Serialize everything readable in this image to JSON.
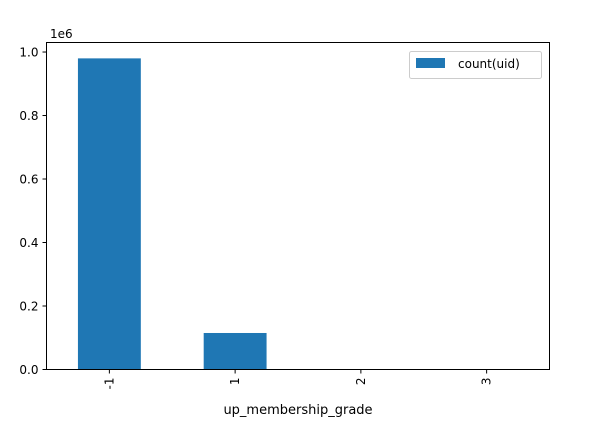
{
  "chart_data": {
    "type": "bar",
    "categories": [
      "-1",
      "1",
      "2",
      "3"
    ],
    "series": [
      {
        "name": "count(uid)",
        "values": [
          980000,
          115000,
          0,
          0
        ],
        "color": "#1f77b4"
      }
    ],
    "xlabel": "up_membership_grade",
    "ylabel": "",
    "ylim": [
      0,
      1030000
    ],
    "yticks": [
      0,
      200000,
      400000,
      600000,
      800000,
      1000000
    ],
    "ytick_labels": [
      "0.0",
      "0.2",
      "0.4",
      "0.6",
      "0.8",
      "1.0"
    ],
    "y_offset_label": "1e6",
    "legend_position": "top-right",
    "grid": false
  }
}
